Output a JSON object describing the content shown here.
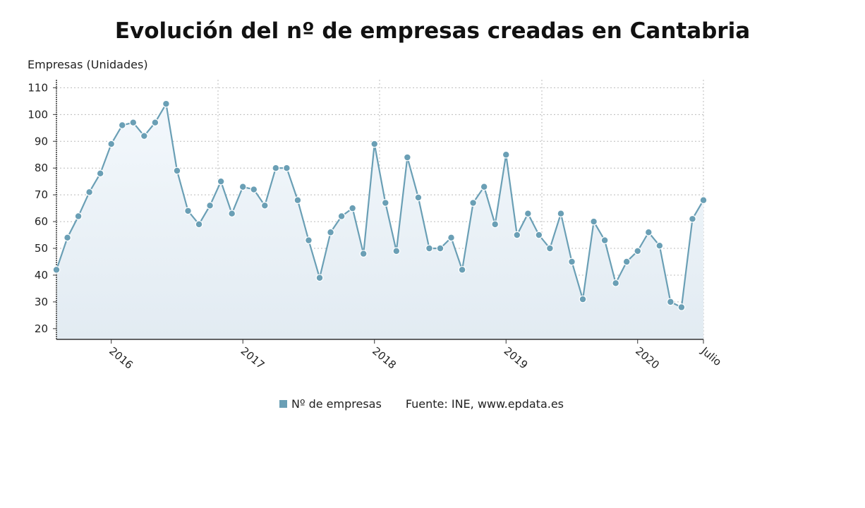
{
  "chart_data": {
    "type": "area",
    "title": "Evolución del nº de empresas creadas en Cantabria",
    "ylabel": "Empresas (Unidades)",
    "xlabel": "",
    "x_start": "2015-08",
    "x_end": "2020-07",
    "x_tick_labels": [
      {
        "label": "2016",
        "month": "2016-01"
      },
      {
        "label": "2017",
        "month": "2017-01"
      },
      {
        "label": "2018",
        "month": "2018-01"
      },
      {
        "label": "2019",
        "month": "2019-01"
      },
      {
        "label": "2020",
        "month": "2020-01"
      },
      {
        "label": "Julio",
        "month": "2020-07"
      }
    ],
    "y_ticks": [
      20,
      30,
      40,
      50,
      60,
      70,
      80,
      90,
      100,
      110
    ],
    "ylim": [
      16,
      113
    ],
    "grid": true,
    "legend_position": "bottom",
    "series": [
      {
        "name": "Nº de empresas",
        "color": "#6a9fb5",
        "values": [
          42,
          54,
          62,
          71,
          78,
          89,
          96,
          97,
          92,
          97,
          104,
          79,
          64,
          59,
          66,
          75,
          63,
          73,
          72,
          66,
          80,
          80,
          68,
          53,
          39,
          56,
          62,
          65,
          48,
          89,
          67,
          49,
          84,
          69,
          50,
          50,
          54,
          42,
          67,
          73,
          59,
          85,
          55,
          63,
          55,
          50,
          63,
          45,
          31,
          60,
          53,
          37,
          45,
          49,
          56,
          51,
          30,
          28,
          61,
          68
        ]
      }
    ],
    "source": "Fuente: INE, www.epdata.es"
  }
}
